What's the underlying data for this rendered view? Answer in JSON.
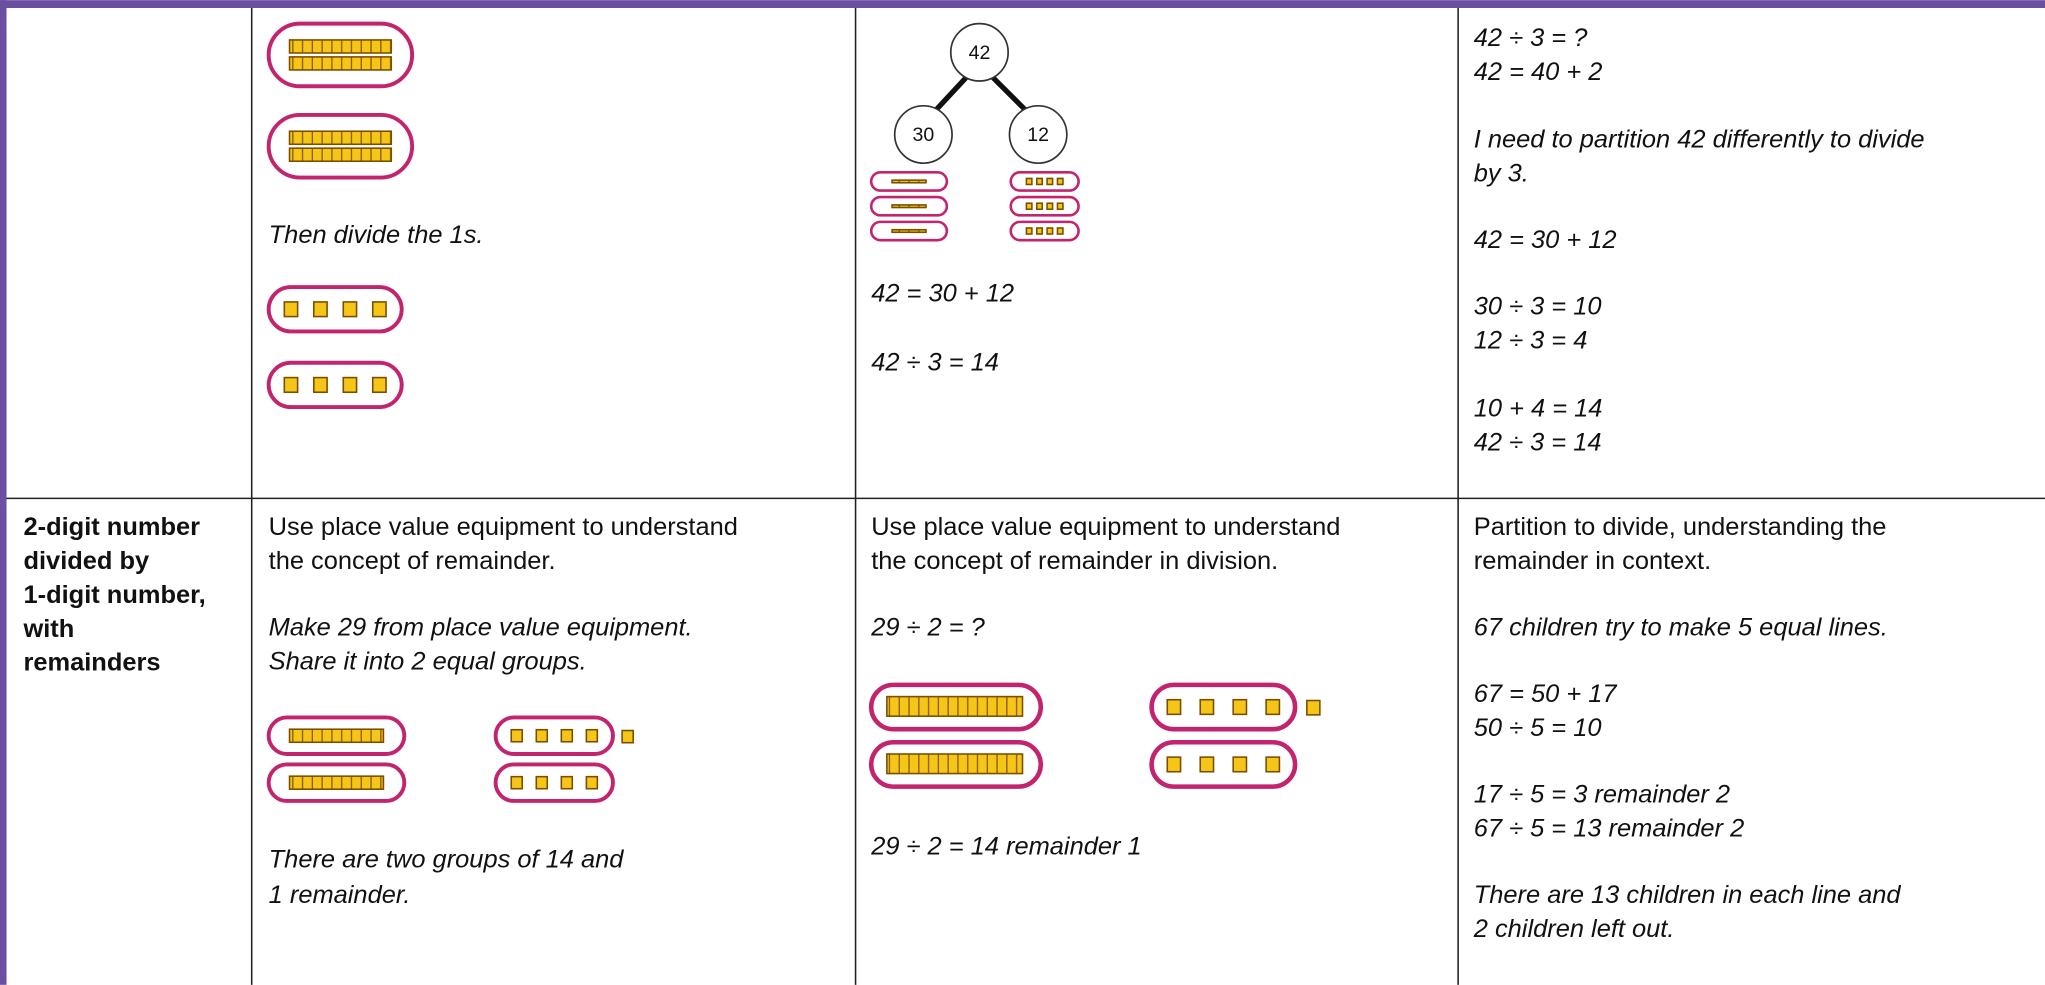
{
  "table": {
    "rows": [
      {
        "col1": {
          "notes": [
            "Then divide the 1s."
          ]
        },
        "col2": {
          "tree": [
            "42",
            "30",
            "12"
          ],
          "notes": [
            "42 = 30 + 12",
            "42 ÷ 3 = 14"
          ]
        },
        "col3": {
          "notes": [
            "42 ÷ 3 = ?",
            "42 = 40 + 2",
            "I need to partition 42 differently to divide",
            "by 3.",
            "42 = 30 + 12",
            "30 ÷ 3 = 10",
            "12 ÷ 3 = 4",
            "10 + 4 = 14",
            "42 ÷ 3 = 14"
          ]
        }
      },
      {
        "heading": [
          "2-digit number",
          "divided by",
          "1-digit number,",
          "with",
          "remainders"
        ],
        "col1": {
          "intro": [
            "Use place value equipment to understand",
            "the concept of remainder."
          ],
          "notes": [
            "Make 29 from place value equipment.",
            "Share it into 2 equal groups."
          ],
          "outro": [
            "There are two groups of 14 and",
            "1 remainder."
          ]
        },
        "col2": {
          "intro": [
            "Use place value equipment to understand",
            "the concept of remainder in division."
          ],
          "notes": [
            "29 ÷ 2 = ?",
            "29 ÷ 2 =  14 remainder 1"
          ]
        },
        "col3": {
          "intro": [
            "Partition to divide, understanding the",
            "remainder in context."
          ],
          "notes": [
            "67 children try to make 5 equal lines.",
            "67 = 50 + 17",
            "50 ÷ 5 = 10",
            "17 ÷ 5 = 3 remainder 2",
            "67 ÷ 5 = 13 remainder 2",
            "There are 13 children in each line and",
            "2 children left out."
          ]
        }
      }
    ]
  }
}
